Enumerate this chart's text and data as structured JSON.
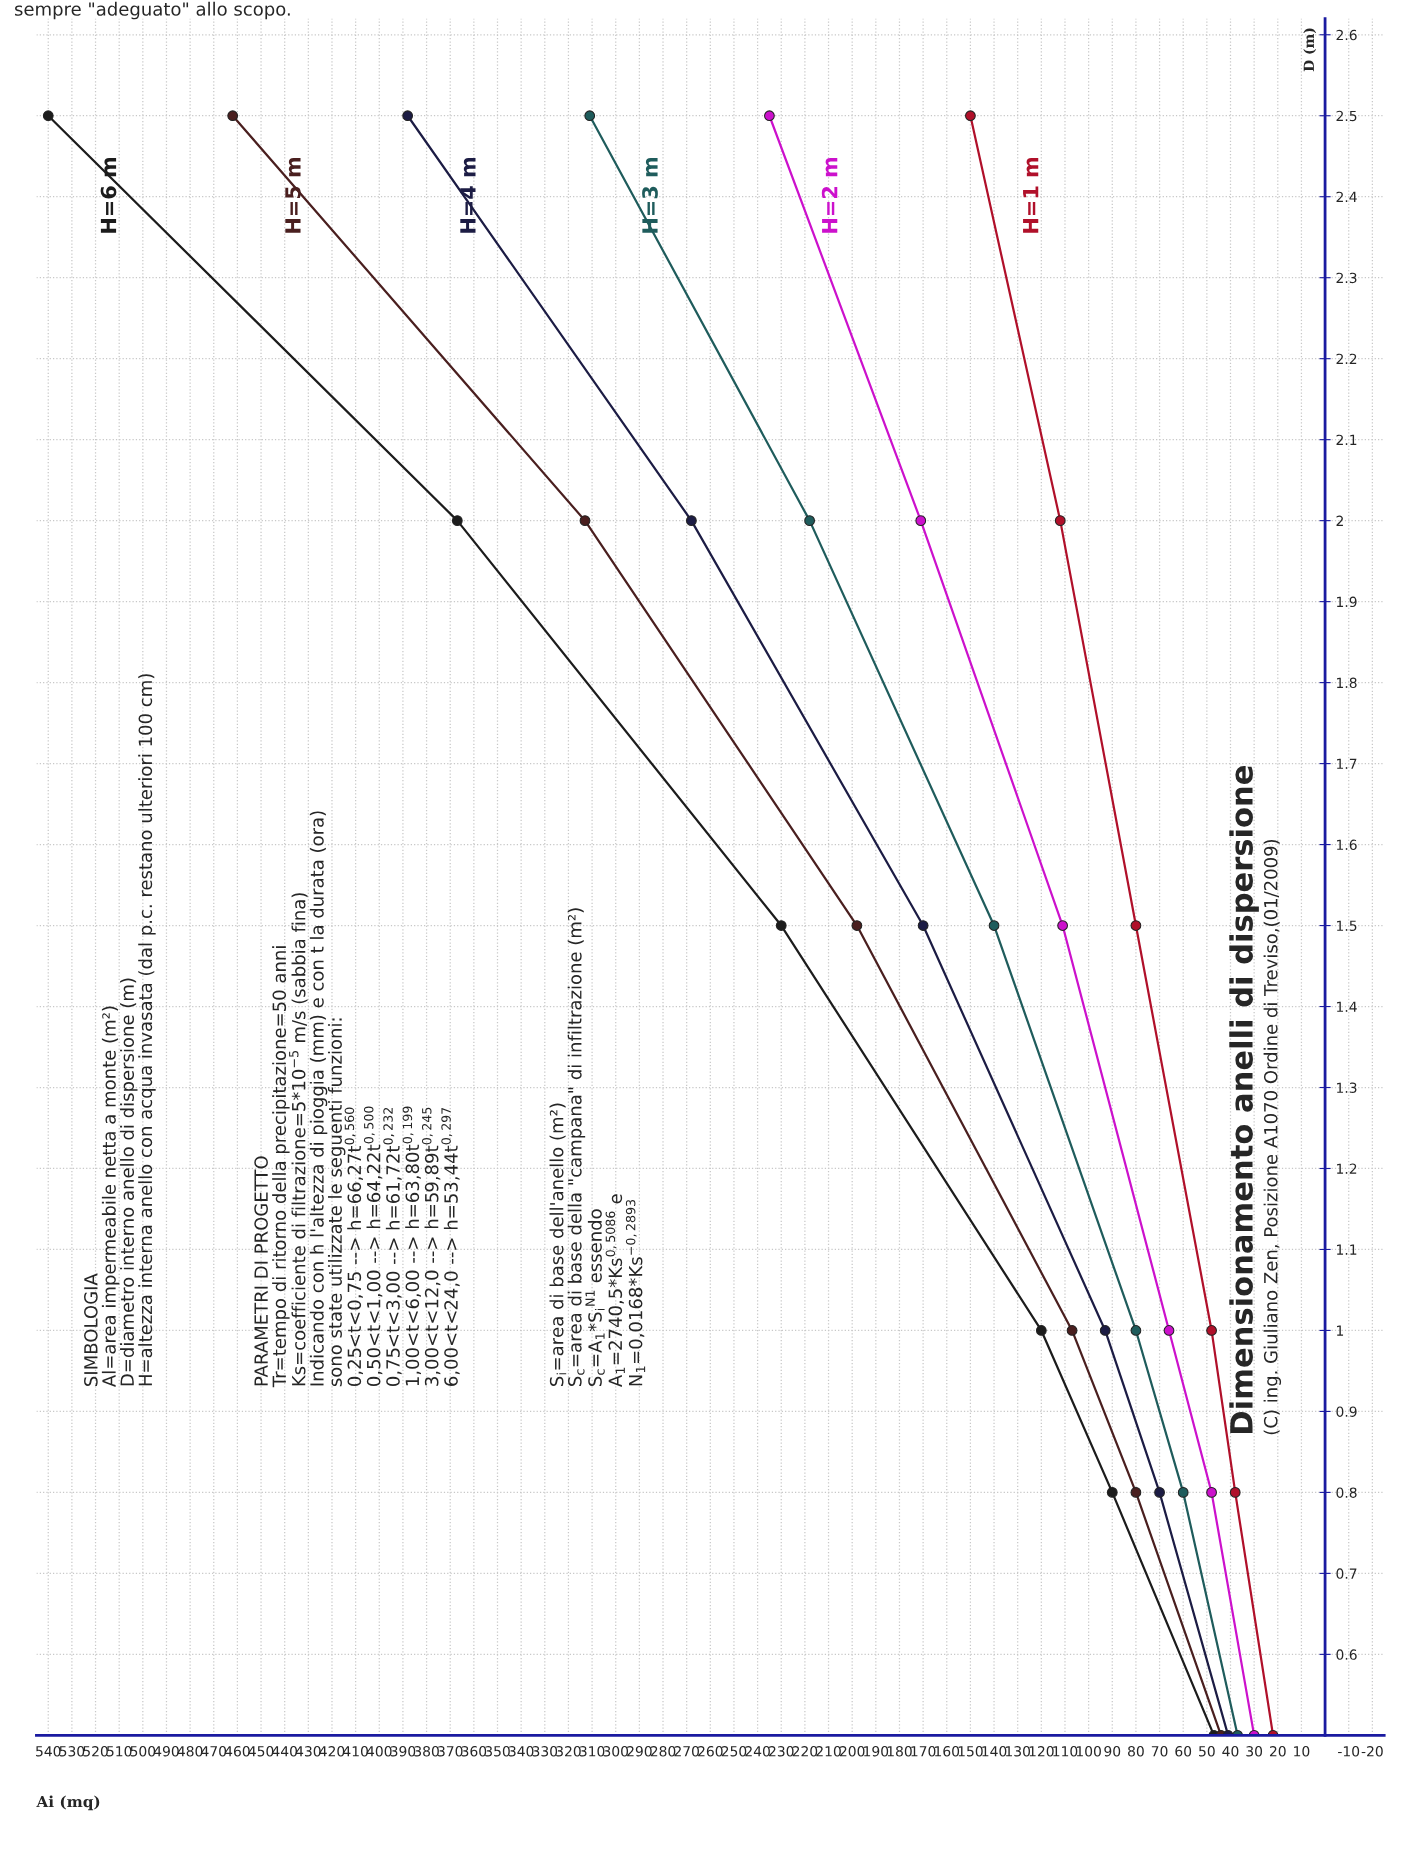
{
  "chart_data": {
    "type": "line",
    "title": "Dimensionamento anelli di dispersione",
    "subtitle": "(C) ing. Giuliano Zen, Posizione A1070 Ordine di Treviso,(01/2009)",
    "xlabel": "Ai (mq)",
    "ylabel": "D (m)",
    "series": [
      {
        "name": "H=6 m",
        "color": "#1c1c1c",
        "x": [
          47,
          90,
          120,
          230,
          367,
          540
        ],
        "values": [
          0.5,
          0.8,
          1.0,
          1.5,
          2.0,
          2.5
        ]
      },
      {
        "name": "H=5 m",
        "color": "#4a1f1f",
        "x": [
          44,
          80,
          107,
          198,
          313,
          462
        ],
        "values": [
          0.5,
          0.8,
          1.0,
          1.5,
          2.0,
          2.5
        ]
      },
      {
        "name": "H=4 m",
        "color": "#1c1c44",
        "x": [
          41,
          70,
          93,
          170,
          268,
          388
        ],
        "values": [
          0.5,
          0.8,
          1.0,
          1.5,
          2.0,
          2.5
        ]
      },
      {
        "name": "H=3 m",
        "color": "#1f5c5c",
        "x": [
          37,
          60,
          80,
          140,
          218,
          311
        ],
        "values": [
          0.5,
          0.8,
          1.0,
          1.5,
          2.0,
          2.5
        ]
      },
      {
        "name": "H=2 m",
        "color": "#cc11cc",
        "x": [
          30,
          48,
          66,
          111,
          171,
          235
        ],
        "values": [
          0.5,
          0.8,
          1.0,
          1.5,
          2.0,
          2.5
        ]
      },
      {
        "name": "H=1 m",
        "color": "#b0102a",
        "x": [
          22,
          38,
          48,
          80,
          112,
          150
        ],
        "values": [
          0.5,
          0.8,
          1.0,
          1.5,
          2.0,
          2.5
        ]
      }
    ],
    "ylim": [
      0.5,
      2.62
    ],
    "yticks": [
      0.6,
      0.7,
      0.8,
      0.9,
      1,
      1.1,
      1.2,
      1.3,
      1.4,
      1.5,
      1.6,
      1.7,
      1.8,
      1.9,
      2,
      2.1,
      2.2,
      2.3,
      2.4,
      2.5,
      2.6
    ],
    "xlim": [
      545,
      -25
    ],
    "xticks": [
      -20,
      -10,
      10,
      20,
      30,
      40,
      50,
      60,
      70,
      80,
      90,
      100,
      110,
      120,
      130,
      140,
      150,
      160,
      170,
      180,
      190,
      200,
      210,
      220,
      230,
      240,
      250,
      260,
      270,
      280,
      290,
      300,
      310,
      320,
      330,
      340,
      350,
      360,
      370,
      380,
      390,
      400,
      410,
      420,
      430,
      440,
      450,
      460,
      470,
      480,
      490,
      500,
      510,
      520,
      530,
      540
    ],
    "marker": "circle",
    "line_style": "solid",
    "grid": true,
    "legend": false,
    "annotations": [
      "sempre \"adeguato\" allo scopo.",
      "SIMBOLOGIA\nAl=area impermeabile netta a monte (m²)\nD=diametro interno anello di dispersione (m)\nH=altezza interna anello con acqua invasata (dal p.c. restano ulteriori 100 cm)",
      "PARAMETRI DI PROGETTO\nTr=tempo di ritorno della precipitazione=50 anni\nKs=coefficiente di filtrazione=5*10$^{−5}$ m/s (sabbia fina)\nIndicando con h l'altezza di pioggia (mm) e con t la durata (ora)\nsono state utilizzate le seguenti funzioni:\n0,25<t<0,75 --> h=66,27t$^{0,560}$\n0,50<t<1,00 --> h=64,22t$^{0,500}$\n0,75<t<3,00 --> h=61,72t$^{0,232}$\n1,00<t<6,00 --> h=63,80t$^{0,199}$\n3,00<t<12,0 --> h=59,89t$^{0,245}$\n6,00<t<24,0 --> h=53,44t$^{0,297}$",
      "S$_{i}$=area di base dell'anello (m²)\nS$_{c}$=area di base della \"campana\" di infiltrazione (m²)\nS$_{c}$=A$_{1}$*S$_{i}$$^{N1}$ essendo\nA$_{1}$=2740,5*Ks$^{0,5086}$ e\nN$_{1}$=0,0168*Ks$^{−0,2893}$"
    ]
  }
}
